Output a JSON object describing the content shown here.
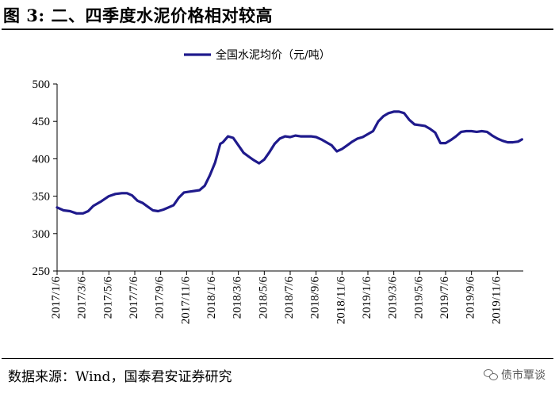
{
  "header": {
    "title": "图 3:  二、四季度水泥价格相对较高"
  },
  "footer": {
    "source": "数据来源：Wind，国泰君安证券研究",
    "watermark": "债市覃谈"
  },
  "chart_data": {
    "type": "line",
    "title": "",
    "xlabel": "",
    "ylabel": "",
    "ylim": [
      250,
      500
    ],
    "yticks": [
      250,
      300,
      350,
      400,
      450,
      500
    ],
    "grid": false,
    "legend_position": "top-center",
    "xtick_labels": [
      "2017/1/6",
      "2017/3/6",
      "2017/5/6",
      "2017/7/6",
      "2017/9/6",
      "2017/11/6",
      "2018/1/6",
      "2018/3/6",
      "2018/5/6",
      "2018/7/6",
      "2018/9/6",
      "2018/11/6",
      "2019/1/6",
      "2019/3/6",
      "2019/5/6",
      "2019/7/6",
      "2019/9/6",
      "2019/11/6"
    ],
    "x_range_months": [
      0,
      36
    ],
    "series": [
      {
        "name": "全国水泥均价（元/吨）",
        "color": "#1f1a8c",
        "x": [
          0,
          0.5,
          1,
          1.5,
          2,
          2.4,
          2.8,
          3.4,
          4,
          4.5,
          5,
          5.4,
          5.8,
          6.2,
          6.6,
          7,
          7.4,
          7.8,
          8.2,
          8.6,
          9,
          9.4,
          9.8,
          10.2,
          10.6,
          11,
          11.4,
          11.8,
          12.2,
          12.6,
          12.8,
          13.2,
          13.6,
          14,
          14.4,
          14.8,
          15.2,
          15.6,
          16,
          16.4,
          16.8,
          17.2,
          17.6,
          18,
          18.4,
          18.8,
          19.2,
          19.6,
          20,
          20.4,
          20.8,
          21.2,
          21.6,
          22,
          22.4,
          22.8,
          23.2,
          23.6,
          24,
          24.4,
          24.8,
          25.2,
          25.6,
          26,
          26.4,
          26.8,
          27.2,
          27.6,
          28,
          28.4,
          28.8,
          29.2,
          29.6,
          30,
          30.4,
          30.8,
          31.2,
          31.6,
          32,
          32.4,
          32.8,
          33.2,
          33.6,
          34,
          34.4,
          34.8,
          35.2,
          35.6,
          35.9
        ],
        "values": [
          335,
          331,
          330,
          327,
          327,
          330,
          337,
          343,
          350,
          353,
          354,
          354,
          351,
          344,
          341,
          336,
          331,
          330,
          332,
          335,
          338,
          348,
          355,
          356,
          357,
          358,
          364,
          378,
          395,
          420,
          422,
          430,
          428,
          418,
          408,
          403,
          398,
          394,
          399,
          409,
          420,
          427,
          430,
          429,
          431,
          430,
          430,
          430,
          429,
          426,
          422,
          418,
          410,
          413,
          418,
          423,
          427,
          429,
          433,
          437,
          450,
          457,
          461,
          463,
          463,
          461,
          452,
          446,
          445,
          444,
          440,
          435,
          421,
          421,
          425,
          430,
          436,
          437,
          437,
          436,
          437,
          436,
          431,
          427,
          424,
          422,
          422,
          423,
          426
        ]
      }
    ]
  }
}
